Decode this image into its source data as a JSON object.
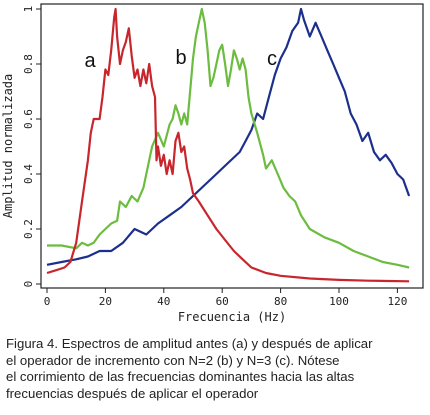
{
  "chart_data": {
    "type": "line",
    "xlabel": "Frecuencia (Hz)",
    "ylabel": "Amplitud normalizada",
    "xlim": [
      0,
      125
    ],
    "ylim": [
      0,
      1
    ],
    "x_ticks": [
      "0",
      "20",
      "40",
      "60",
      "80",
      "100",
      "120"
    ],
    "y_ticks": [
      "0",
      "0.2",
      "0.4",
      "0.6",
      "0.8",
      "1"
    ],
    "grid": false,
    "series": [
      {
        "name": "a",
        "color": "#c8262d",
        "points": [
          [
            0,
            0.04
          ],
          [
            3,
            0.05
          ],
          [
            6,
            0.06
          ],
          [
            8,
            0.08
          ],
          [
            10,
            0.15
          ],
          [
            12,
            0.3
          ],
          [
            14,
            0.45
          ],
          [
            15,
            0.55
          ],
          [
            16,
            0.6
          ],
          [
            18,
            0.6
          ],
          [
            19,
            0.68
          ],
          [
            20,
            0.78
          ],
          [
            21,
            0.76
          ],
          [
            22,
            0.85
          ],
          [
            23,
            0.97
          ],
          [
            23.5,
            1.0
          ],
          [
            24,
            0.9
          ],
          [
            25,
            0.8
          ],
          [
            26,
            0.85
          ],
          [
            27,
            0.88
          ],
          [
            28,
            0.93
          ],
          [
            29,
            0.83
          ],
          [
            30,
            0.75
          ],
          [
            31,
            0.78
          ],
          [
            32,
            0.72
          ],
          [
            33,
            0.78
          ],
          [
            34,
            0.73
          ],
          [
            35,
            0.8
          ],
          [
            36,
            0.72
          ],
          [
            37,
            0.68
          ],
          [
            37.5,
            0.45
          ],
          [
            38,
            0.5
          ],
          [
            39,
            0.43
          ],
          [
            40,
            0.47
          ],
          [
            41,
            0.4
          ],
          [
            42,
            0.45
          ],
          [
            43,
            0.4
          ],
          [
            44,
            0.52
          ],
          [
            45,
            0.55
          ],
          [
            46,
            0.48
          ],
          [
            47,
            0.5
          ],
          [
            48,
            0.42
          ],
          [
            49,
            0.38
          ],
          [
            50,
            0.33
          ],
          [
            52,
            0.3
          ],
          [
            55,
            0.25
          ],
          [
            58,
            0.2
          ],
          [
            61,
            0.16
          ],
          [
            64,
            0.12
          ],
          [
            67,
            0.09
          ],
          [
            70,
            0.06
          ],
          [
            75,
            0.04
          ],
          [
            80,
            0.03
          ],
          [
            90,
            0.02
          ],
          [
            100,
            0.015
          ],
          [
            110,
            0.012
          ],
          [
            124,
            0.01
          ]
        ]
      },
      {
        "name": "b",
        "color": "#6cbc3f",
        "points": [
          [
            0,
            0.14
          ],
          [
            5,
            0.14
          ],
          [
            10,
            0.13
          ],
          [
            12,
            0.15
          ],
          [
            14,
            0.14
          ],
          [
            16,
            0.15
          ],
          [
            18,
            0.18
          ],
          [
            20,
            0.2
          ],
          [
            22,
            0.22
          ],
          [
            24,
            0.23
          ],
          [
            25,
            0.3
          ],
          [
            27,
            0.28
          ],
          [
            29,
            0.32
          ],
          [
            31,
            0.3
          ],
          [
            33,
            0.35
          ],
          [
            35,
            0.45
          ],
          [
            36,
            0.5
          ],
          [
            38,
            0.55
          ],
          [
            40,
            0.5
          ],
          [
            42,
            0.58
          ],
          [
            43,
            0.6
          ],
          [
            44,
            0.65
          ],
          [
            45,
            0.62
          ],
          [
            46,
            0.58
          ],
          [
            47,
            0.62
          ],
          [
            48,
            0.58
          ],
          [
            49,
            0.7
          ],
          [
            50,
            0.82
          ],
          [
            51,
            0.9
          ],
          [
            52,
            0.95
          ],
          [
            53,
            1.0
          ],
          [
            54,
            0.95
          ],
          [
            55,
            0.85
          ],
          [
            56,
            0.72
          ],
          [
            57,
            0.75
          ],
          [
            58,
            0.8
          ],
          [
            59,
            0.85
          ],
          [
            60,
            0.87
          ],
          [
            61,
            0.8
          ],
          [
            62,
            0.72
          ],
          [
            63,
            0.78
          ],
          [
            64,
            0.85
          ],
          [
            65,
            0.82
          ],
          [
            66,
            0.78
          ],
          [
            67,
            0.82
          ],
          [
            68,
            0.78
          ],
          [
            69,
            0.68
          ],
          [
            70,
            0.62
          ],
          [
            72,
            0.55
          ],
          [
            74,
            0.47
          ],
          [
            75,
            0.42
          ],
          [
            77,
            0.45
          ],
          [
            79,
            0.4
          ],
          [
            81,
            0.35
          ],
          [
            83,
            0.32
          ],
          [
            85,
            0.3
          ],
          [
            87,
            0.25
          ],
          [
            90,
            0.2
          ],
          [
            95,
            0.17
          ],
          [
            100,
            0.15
          ],
          [
            105,
            0.12
          ],
          [
            110,
            0.1
          ],
          [
            115,
            0.08
          ],
          [
            120,
            0.07
          ],
          [
            124,
            0.06
          ]
        ]
      },
      {
        "name": "c",
        "color": "#1c2f8c",
        "points": [
          [
            0,
            0.07
          ],
          [
            5,
            0.08
          ],
          [
            10,
            0.09
          ],
          [
            14,
            0.1
          ],
          [
            18,
            0.12
          ],
          [
            22,
            0.12
          ],
          [
            26,
            0.15
          ],
          [
            30,
            0.2
          ],
          [
            34,
            0.18
          ],
          [
            38,
            0.22
          ],
          [
            42,
            0.25
          ],
          [
            46,
            0.28
          ],
          [
            50,
            0.32
          ],
          [
            54,
            0.36
          ],
          [
            58,
            0.4
          ],
          [
            62,
            0.44
          ],
          [
            66,
            0.48
          ],
          [
            68,
            0.52
          ],
          [
            70,
            0.56
          ],
          [
            72,
            0.62
          ],
          [
            74,
            0.6
          ],
          [
            76,
            0.68
          ],
          [
            78,
            0.76
          ],
          [
            80,
            0.82
          ],
          [
            82,
            0.86
          ],
          [
            84,
            0.92
          ],
          [
            86,
            0.95
          ],
          [
            87,
            1.0
          ],
          [
            88,
            0.96
          ],
          [
            90,
            0.9
          ],
          [
            92,
            0.95
          ],
          [
            94,
            0.9
          ],
          [
            96,
            0.85
          ],
          [
            98,
            0.8
          ],
          [
            100,
            0.75
          ],
          [
            102,
            0.7
          ],
          [
            104,
            0.62
          ],
          [
            106,
            0.58
          ],
          [
            108,
            0.52
          ],
          [
            110,
            0.55
          ],
          [
            112,
            0.48
          ],
          [
            114,
            0.45
          ],
          [
            116,
            0.47
          ],
          [
            118,
            0.44
          ],
          [
            120,
            0.4
          ],
          [
            122,
            0.38
          ],
          [
            124,
            0.32
          ]
        ]
      }
    ]
  },
  "caption": [
    "Figura 4. Espectros de amplitud antes (a) y después de aplicar",
    "el operador de incremento  con N=2 (b) y N=3 (c). Nótese",
    "el corrimiento de las frecuencias dominantes hacia las altas",
    "frecuencias después de aplicar el operador"
  ]
}
